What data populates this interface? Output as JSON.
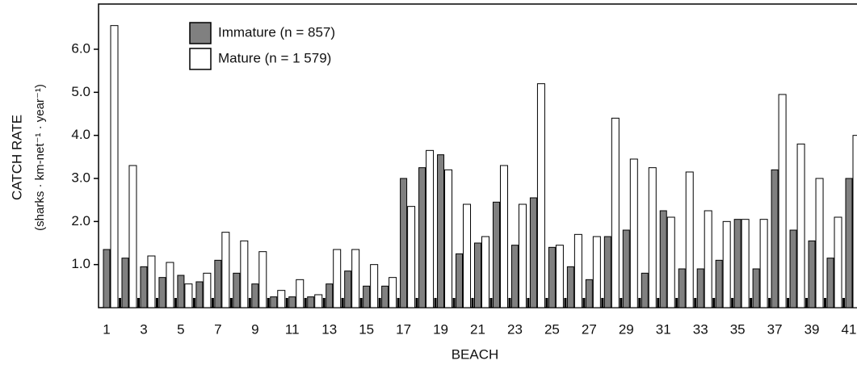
{
  "chart_data": {
    "type": "bar",
    "ylabel": "CATCH RATE",
    "ylabel_sub": "(sharks · km-net⁻¹ · year⁻¹)",
    "xlabel": "BEACH",
    "categories": [
      "1",
      null,
      "3",
      null,
      "5",
      null,
      "7",
      null,
      "9",
      null,
      "11",
      null,
      "13",
      null,
      "15",
      null,
      "17",
      null,
      "19",
      null,
      "21",
      null,
      "23",
      null,
      "25",
      null,
      "27",
      null,
      "29",
      null,
      "31",
      null,
      "33",
      null,
      "35",
      null,
      "37",
      null,
      "39",
      null,
      "41"
    ],
    "series": [
      {
        "name": "Immature (n = 857)",
        "color": "#808080",
        "values": [
          1.35,
          1.15,
          0.95,
          0.7,
          0.75,
          0.6,
          1.1,
          0.8,
          0.55,
          0.25,
          0.25,
          0.25,
          0.55,
          0.85,
          0.5,
          0.5,
          3.0,
          3.25,
          3.55,
          1.25,
          1.5,
          2.45,
          1.45,
          2.55,
          1.4,
          0.95,
          0.65,
          1.65,
          1.8,
          0.8,
          2.25,
          0.9,
          0.9,
          1.1,
          2.05,
          0.9,
          3.2,
          1.8,
          1.55,
          1.15,
          3.0
        ]
      },
      {
        "name": "Mature (n = 1 579)",
        "color": "#ffffff",
        "values": [
          6.55,
          3.3,
          1.2,
          1.05,
          0.55,
          0.8,
          1.75,
          1.55,
          1.3,
          0.4,
          0.65,
          0.3,
          1.35,
          1.35,
          1.0,
          0.7,
          2.35,
          3.65,
          3.2,
          2.4,
          1.65,
          3.3,
          2.4,
          5.2,
          1.45,
          1.7,
          1.65,
          4.4,
          3.45,
          3.25,
          2.1,
          3.15,
          2.25,
          2.0,
          2.05,
          2.05,
          4.95,
          3.8,
          3.0,
          2.1,
          4.0
        ]
      }
    ],
    "ylim": [
      0,
      7.05
    ],
    "yticks": [
      {
        "value": 1,
        "label": "1.0"
      },
      {
        "value": 2,
        "label": "2.0"
      },
      {
        "value": 3,
        "label": "3.0"
      },
      {
        "value": 4,
        "label": "4.0"
      },
      {
        "value": 5,
        "label": "5.0"
      },
      {
        "value": 6,
        "label": "6.0"
      }
    ],
    "legend": "upper left"
  }
}
